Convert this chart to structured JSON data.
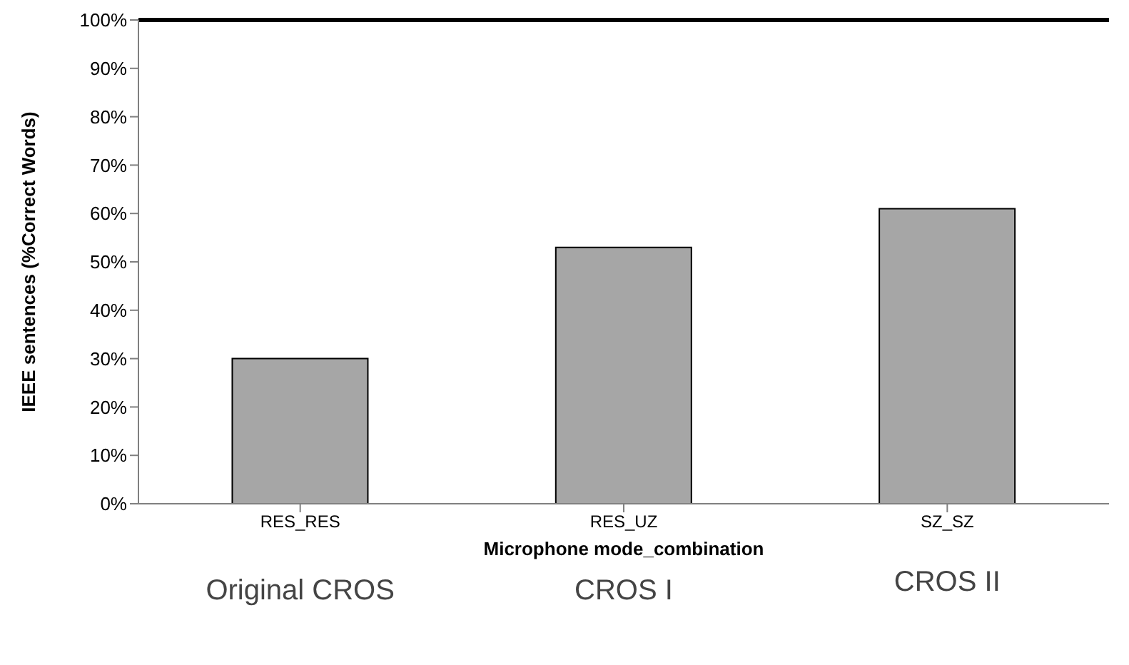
{
  "chart_data": {
    "type": "bar",
    "xlabel": "Microphone mode_combination",
    "ylabel": "IEEE sentences (%Correct Words)",
    "categories": [
      "RES_RES",
      "RES_UZ",
      "SZ_SZ"
    ],
    "values": [
      30,
      53,
      61
    ],
    "color": "#a6a6a6",
    "ylim": [
      0,
      100
    ],
    "yticks": [
      {
        "value": 0,
        "label": "0%"
      },
      {
        "value": 10,
        "label": "10%"
      },
      {
        "value": 20,
        "label": "20%"
      },
      {
        "value": 30,
        "label": "30%"
      },
      {
        "value": 40,
        "label": "40%"
      },
      {
        "value": 50,
        "label": "50%"
      },
      {
        "value": 60,
        "label": "60%"
      },
      {
        "value": 70,
        "label": "70%"
      },
      {
        "value": 80,
        "label": "80%"
      },
      {
        "value": 90,
        "label": "90%"
      },
      {
        "value": 100,
        "label": "100%"
      }
    ],
    "grid": false,
    "legend": false,
    "annotations": [
      "Original CROS",
      "CROS I",
      "CROS II"
    ]
  }
}
